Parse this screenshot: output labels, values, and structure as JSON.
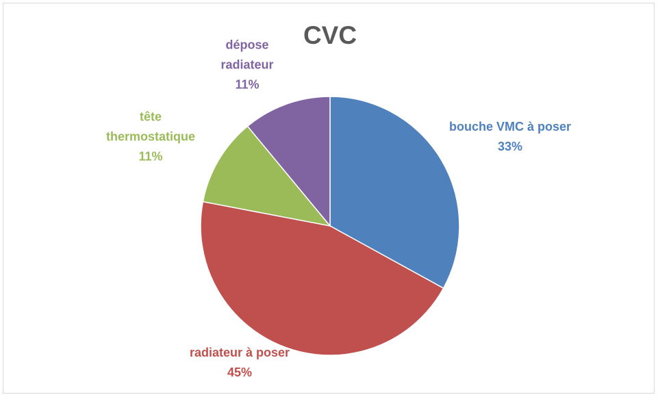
{
  "chart_data": {
    "type": "pie",
    "title": "CVC",
    "categories": [
      "bouche VMC à poser",
      "radiateur à poser",
      "tête thermostatique",
      "dépose radiateur"
    ],
    "values": [
      33,
      45,
      11,
      11
    ],
    "value_labels": [
      "33%",
      "45%",
      "11%",
      "11%"
    ],
    "colors": [
      "#4f81bd",
      "#c0504d",
      "#9bbb59",
      "#8064a2"
    ]
  }
}
